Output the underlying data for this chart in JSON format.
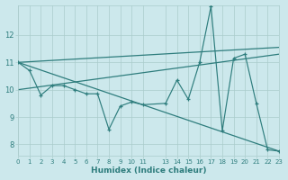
{
  "xlabel": "Humidex (Indice chaleur)",
  "bg_color": "#cce8ec",
  "line_color": "#2e7d7d",
  "grid_color": "#aacccc",
  "xlim": [
    0,
    23
  ],
  "ylim": [
    7.6,
    13.1
  ],
  "yticks": [
    8,
    9,
    10,
    11,
    12
  ],
  "xtick_positions": [
    0,
    1,
    2,
    3,
    4,
    5,
    6,
    7,
    8,
    9,
    10,
    11,
    13,
    14,
    15,
    16,
    17,
    18,
    19,
    20,
    21,
    22,
    23
  ],
  "xtick_labels": [
    "0",
    "1",
    "2",
    "3",
    "4",
    "5",
    "6",
    "7",
    "8",
    "9",
    "10",
    "11",
    "13",
    "14",
    "15",
    "16",
    "17",
    "18",
    "19",
    "20",
    "21",
    "22",
    "23"
  ],
  "lines": [
    {
      "x": [
        0,
        1,
        2,
        3,
        4,
        5,
        6,
        7,
        8,
        9,
        10,
        11,
        13,
        14,
        15,
        16,
        17,
        18,
        19,
        20,
        21,
        22,
        23
      ],
      "y": [
        11.0,
        10.7,
        9.8,
        10.15,
        10.15,
        10.0,
        9.85,
        9.85,
        8.55,
        9.4,
        9.55,
        9.45,
        9.5,
        10.35,
        9.65,
        11.0,
        13.05,
        8.5,
        11.15,
        11.3,
        9.5,
        7.8,
        7.75
      ]
    },
    {
      "x": [
        0,
        23
      ],
      "y": [
        11.0,
        11.55
      ]
    },
    {
      "x": [
        0,
        23
      ],
      "y": [
        11.0,
        7.75
      ]
    },
    {
      "x": [
        0,
        23
      ],
      "y": [
        10.0,
        11.3
      ]
    }
  ]
}
